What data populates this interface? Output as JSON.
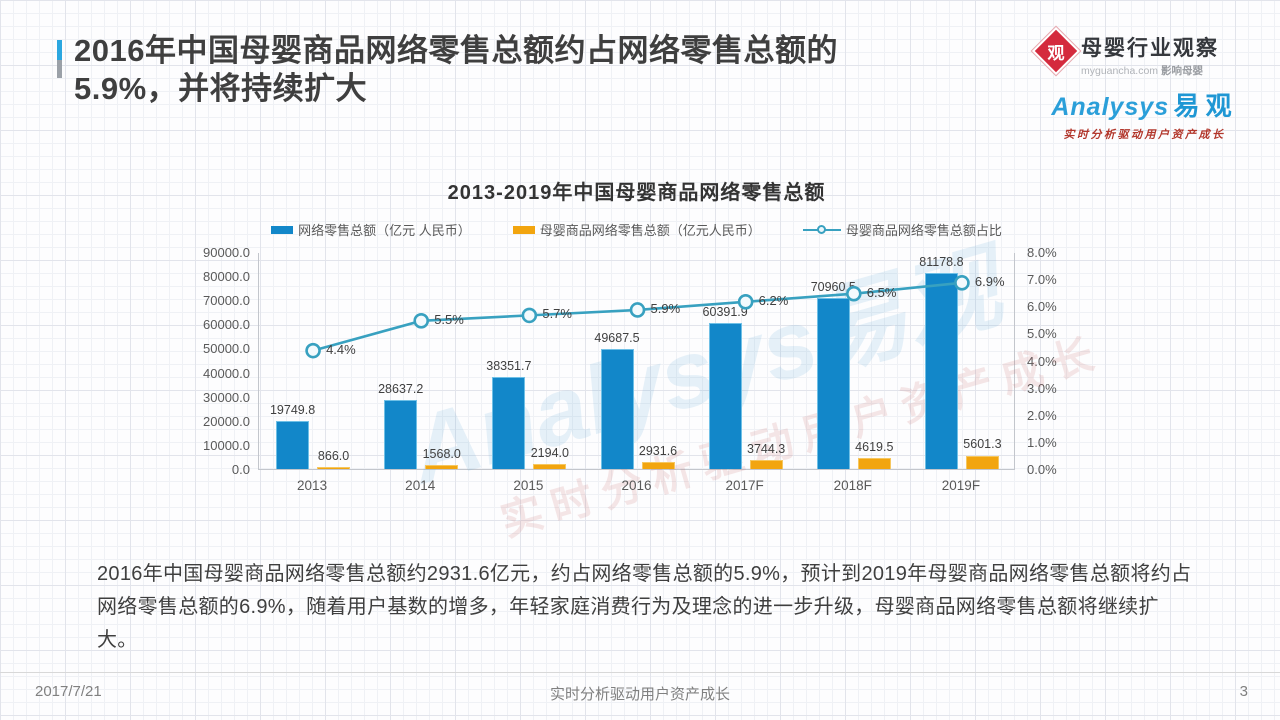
{
  "header": {
    "title_line1": "2016年中国母婴商品网络零售总额约占网络零售总额的",
    "title_line2": "5.9%，并将持续扩大"
  },
  "logos": {
    "myguancha": {
      "symbol": "观",
      "name": "母婴行业观察",
      "site": "myguancha.com",
      "tagline": "影响母婴"
    },
    "analysys": {
      "word": "Analysys",
      "cn": "易观",
      "slogan": "实时分析驱动用户资产成长"
    }
  },
  "chart_data": {
    "type": "bar+line",
    "title": "2013-2019年中国母婴商品网络零售总额",
    "categories": [
      "2013",
      "2014",
      "2015",
      "2016",
      "2017F",
      "2018F",
      "2019F"
    ],
    "series": [
      {
        "name": "网络零售总额（亿元 人民币）",
        "type": "bar",
        "axis": "left",
        "color": "#1287c9",
        "values": [
          19749.8,
          28637.2,
          38351.7,
          49687.5,
          60391.9,
          70960.5,
          81178.8
        ]
      },
      {
        "name": "母婴商品网络零售总额（亿元人民币）",
        "type": "bar",
        "axis": "left",
        "color": "#f2a50f",
        "values": [
          866.0,
          1568.0,
          2194.0,
          2931.6,
          3744.3,
          4619.5,
          5601.3
        ]
      },
      {
        "name": "母婴商品网络零售总额占比",
        "type": "line",
        "axis": "right",
        "color": "#38a1c0",
        "values": [
          4.4,
          5.5,
          5.7,
          5.9,
          6.2,
          6.5,
          6.9
        ]
      }
    ],
    "left_axis": {
      "min": 0,
      "max": 90000,
      "step": 10000,
      "suffix": ""
    },
    "right_axis": {
      "min": 0,
      "max": 8,
      "step": 1,
      "suffix": "%"
    },
    "legend_position": "top",
    "grid": true,
    "watermark_main": "Analysys易观",
    "watermark_sub": "实时分析驱动用户资产成长"
  },
  "body_text": "2016年中国母婴商品网络零售总额约2931.6亿元，约占网络零售总额的5.9%，预计到2019年母婴商品网络零售总额将约占网络零售总额的6.9%，随着用户基数的增多，年轻家庭消费行为及理念的进一步升级，母婴商品网络零售总额将继续扩大。",
  "footer": {
    "date": "2017/7/21",
    "slogan": "实时分析驱动用户资产成长",
    "page": "3"
  }
}
